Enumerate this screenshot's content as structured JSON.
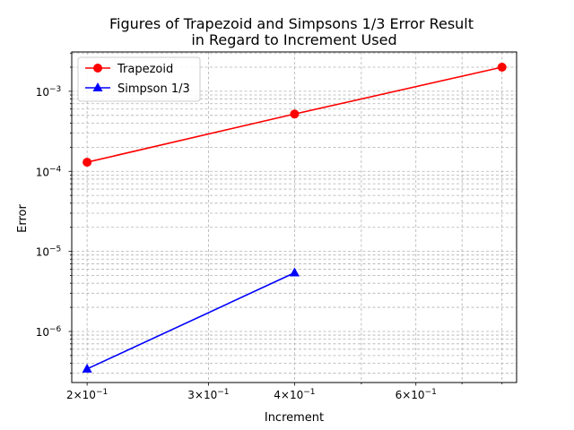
{
  "chart_data": {
    "type": "line",
    "title_line1": "Figures of Trapezoid and Simpsons 1/3 Error Result",
    "title_line2": "in Regard to Increment Used",
    "xlabel": "Increment",
    "ylabel": "Error",
    "xscale": "log",
    "yscale": "log",
    "xlim": [
      0.19,
      0.84
    ],
    "ylim": [
      2.3e-07,
      0.0031
    ],
    "grid": true,
    "legend_position": "top-left",
    "x_major_ticks": [
      {
        "value": 0.2,
        "base": "2×10",
        "exp": "−1"
      },
      {
        "value": 0.3,
        "base": "3×10",
        "exp": "−1"
      },
      {
        "value": 0.4,
        "base": "4×10",
        "exp": "−1"
      },
      {
        "value": 0.6,
        "base": "6×10",
        "exp": "−1"
      }
    ],
    "x_minor_ticks": [
      0.5,
      0.7,
      0.8
    ],
    "y_major_ticks": [
      {
        "value": 1e-06,
        "base": "10",
        "exp": "−6"
      },
      {
        "value": 1e-05,
        "base": "10",
        "exp": "−5"
      },
      {
        "value": 0.0001,
        "base": "10",
        "exp": "−4"
      },
      {
        "value": 0.001,
        "base": "10",
        "exp": "−3"
      }
    ],
    "series": [
      {
        "name": "Trapezoid",
        "color": "#ff0000",
        "marker": "circle",
        "x": [
          0.2,
          0.4,
          0.8
        ],
        "y": [
          0.00013,
          0.00052,
          0.002
        ]
      },
      {
        "name": "Simpson 1/3",
        "color": "#0000ff",
        "marker": "triangle",
        "x": [
          0.2,
          0.4
        ],
        "y": [
          3.4e-07,
          5.4e-06
        ]
      }
    ]
  }
}
